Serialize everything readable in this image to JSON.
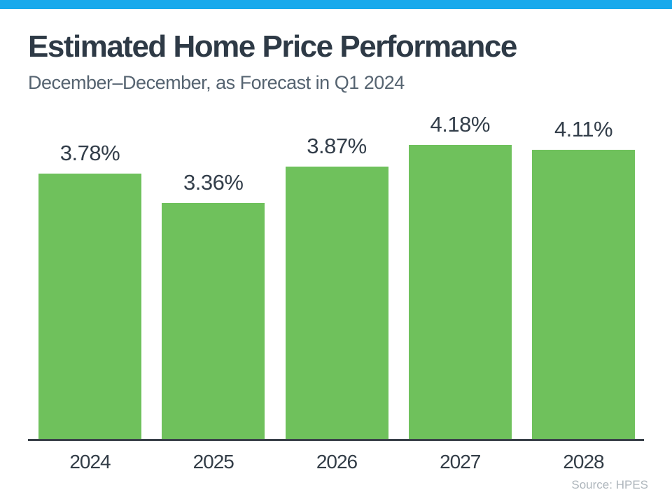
{
  "page": {
    "title": "Estimated Home Price Performance",
    "subtitle": "December–December, as Forecast in Q1 2024",
    "source": "Source: HPES",
    "accent_color": "#18A9EC",
    "background_color": "#FFFFFF"
  },
  "chart_data": {
    "type": "bar",
    "title": "Estimated Home Price Performance",
    "subtitle": "December–December, as Forecast in Q1 2024",
    "categories": [
      "2024",
      "2025",
      "2026",
      "2027",
      "2028"
    ],
    "values": [
      3.78,
      3.36,
      3.87,
      4.18,
      4.11
    ],
    "value_labels": [
      "3.78%",
      "3.36%",
      "3.87%",
      "4.18%",
      "4.11%"
    ],
    "xlabel": "",
    "ylabel": "",
    "ylim": [
      0,
      4.6
    ],
    "grid": false,
    "legend": false,
    "bar_color": "#6FC15C",
    "value_label_color": "#333E4A",
    "tick_label_color": "#333D47",
    "axis_line_color": "#3A4149",
    "source": "Source: HPES"
  }
}
